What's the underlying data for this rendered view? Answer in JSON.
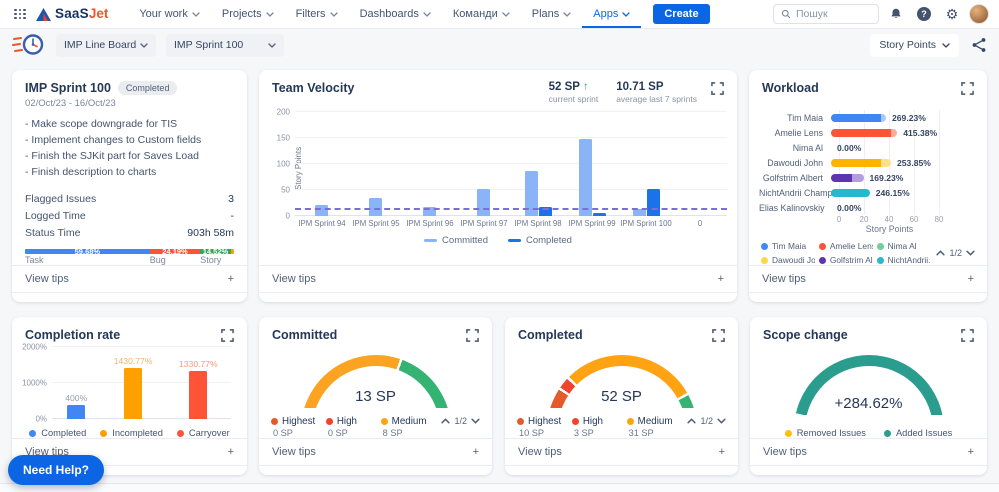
{
  "nav": {
    "logo_saas": "SaaS",
    "logo_jet": "Jet",
    "items": [
      "Your work",
      "Projects",
      "Filters",
      "Dashboards",
      "Команди",
      "Plans",
      "Apps"
    ],
    "active_item": "Apps",
    "create_label": "Create",
    "search_placeholder": "Пошук"
  },
  "toolbar": {
    "board_select": "IMP Line Board",
    "sprint_select": "IMP Sprint 100",
    "metric_select": "Story Points"
  },
  "cards": {
    "sprint": {
      "title": "IMP Sprint 100",
      "badge": "Completed",
      "dates": "02/Oct/23 - 16/Oct/23",
      "description_lines": [
        "- Make scope downgrade for TIS",
        "- Implement changes to Custom fields",
        "- Finish the SJKit part for Saves Load",
        "- Finish description to charts"
      ],
      "stats": [
        {
          "label": "Flagged Issues",
          "value": "3"
        },
        {
          "label": "Logged Time",
          "value": "-"
        },
        {
          "label": "Status Time",
          "value": "903h 58m"
        }
      ],
      "issue_bar": [
        {
          "label": "Task",
          "pct": 59.68,
          "text": "59.68%",
          "color": "#4285f4"
        },
        {
          "label": "Bug",
          "pct": 24.19,
          "text": "24.19%",
          "color": "#ff5337"
        },
        {
          "label": "Story",
          "pct": 14.52,
          "text": "14.52%",
          "color": "#34a853"
        },
        {
          "label": "",
          "pct": 1.61,
          "text": "",
          "color": "#ffa000"
        }
      ],
      "view_tips": "View tips"
    },
    "velocity": {
      "title": "Team Velocity",
      "current": {
        "value": "52 SP",
        "caption": "current sprint",
        "trend": "up"
      },
      "average": {
        "value": "10.71 SP",
        "caption": "average last 7 sprints"
      },
      "view_tips": "View tips",
      "chart_data": {
        "type": "bar",
        "ylabel": "Story Points",
        "ylim": [
          0,
          200
        ],
        "yticks": [
          0,
          50,
          100,
          150,
          200
        ],
        "categories": [
          "IPM Sprint 94",
          "IPM Sprint 95",
          "IPM Sprint 96",
          "IPM Sprint 97",
          "IPM Sprint 98",
          "IPM Sprint 99",
          "IPM Sprint 100",
          "0"
        ],
        "series": [
          {
            "name": "Committed",
            "color": "#8ab4f8",
            "values": [
              21,
              35,
              17,
              52,
              87,
              148,
              13,
              0
            ]
          },
          {
            "name": "Completed",
            "color": "#1a73e8",
            "values": [
              0,
              0,
              0,
              0,
              18,
              5,
              52,
              0
            ]
          }
        ],
        "average_line": {
          "value": 10.71,
          "color": "#7a6fd9",
          "style": "dashed"
        }
      }
    },
    "workload": {
      "title": "Workload",
      "view_tips": "View tips",
      "pagination": "1/2",
      "chart_data": {
        "type": "bar-horizontal",
        "xlabel": "Story Points",
        "xlim": [
          0,
          80
        ],
        "xticks": [
          0,
          20,
          40,
          60,
          80
        ],
        "rows": [
          {
            "name": "Tim Maia",
            "solid": 40,
            "total": 44,
            "label": "269.23%",
            "color": "#4285f4",
            "light": "#a8c7fa"
          },
          {
            "name": "Amelie Lens",
            "solid": 48,
            "total": 53,
            "label": "415.38%",
            "color": "#ff5337",
            "light": "#ffab9e"
          },
          {
            "name": "Nima Al",
            "solid": 0,
            "total": 0,
            "label": "0.00%",
            "color": "#6fcf97",
            "light": "#b7e4c7"
          },
          {
            "name": "Dawoudi John",
            "solid": 40,
            "total": 48,
            "label": "253.85%",
            "color": "#ffb300",
            "light": "#ffe08a"
          },
          {
            "name": "Golfstrim Albert",
            "solid": 17,
            "total": 26,
            "label": "169.23%",
            "color": "#5e35b1",
            "light": "#b39ddb"
          },
          {
            "name": "NichtAndrii Champel",
            "solid": 31,
            "total": 31,
            "label": "246.15%",
            "color": "#26b8ce",
            "light": "#8fdce8"
          },
          {
            "name": "Elias Kalinovskiy",
            "solid": 0,
            "total": 0,
            "label": "0.00%",
            "color": "#9e9e9e",
            "light": "#cccccc"
          }
        ]
      },
      "legend": [
        {
          "label": "Tim Maia",
          "color": "#4285f4"
        },
        {
          "label": "Amelie Lens",
          "color": "#ff5337"
        },
        {
          "label": "Nima Al",
          "color": "#6fcf97"
        },
        {
          "label": "Dawoudi John",
          "color": "#ffd54f"
        },
        {
          "label": "Golfstrim Al...",
          "color": "#5e35b1"
        },
        {
          "label": "NichtAndrii...",
          "color": "#26b8ce"
        }
      ]
    },
    "completion": {
      "title": "Completion rate",
      "view_tips": "View tips",
      "chart_data": {
        "type": "bar",
        "ylim": [
          0,
          2000
        ],
        "yticks": [
          {
            "value": 0,
            "text": "0%"
          },
          {
            "value": 1000,
            "text": "1000%"
          },
          {
            "value": 2000,
            "text": "2000%"
          }
        ],
        "bars": [
          {
            "label": "Completed",
            "value": 400,
            "text": "400%",
            "color": "#4285f4",
            "label_color": "#97a0af"
          },
          {
            "label": "Incompleted",
            "value": 1430.77,
            "text": "1430.77%",
            "color": "#ffa000",
            "label_color": "#f0b266"
          },
          {
            "label": "Carryover",
            "value": 1330.77,
            "text": "1330.77%",
            "color": "#ff5337",
            "label_color": "#f59784"
          }
        ]
      }
    },
    "committed": {
      "title": "Committed",
      "value": "13 SP",
      "view_tips": "View tips",
      "pagination": "1/2",
      "gauge": {
        "segments": [
          {
            "color": "#fca321",
            "fraction": 0.615
          },
          {
            "color": "#34b373",
            "fraction": 0.385
          }
        ]
      },
      "legend": [
        {
          "label": "Highest",
          "value": "0 SP",
          "color": "#e55a2b"
        },
        {
          "label": "High",
          "value": "0 SP",
          "color": "#f4432c"
        },
        {
          "label": "Medium",
          "value": "8 SP",
          "color": "#ffa312"
        }
      ]
    },
    "completed": {
      "title": "Completed",
      "value": "52 SP",
      "view_tips": "View tips",
      "pagination": "1/2",
      "gauge": {
        "segments": [
          {
            "color": "#e55a2b",
            "fraction": 0.192
          },
          {
            "color": "#f4432c",
            "fraction": 0.058
          },
          {
            "color": "#ffa312",
            "fraction": 0.596
          },
          {
            "color": "#34b373",
            "fraction": 0.154
          }
        ]
      },
      "legend": [
        {
          "label": "Highest",
          "value": "10 SP",
          "color": "#e55a2b"
        },
        {
          "label": "High",
          "value": "3 SP",
          "color": "#f4432c"
        },
        {
          "label": "Medium",
          "value": "31 SP",
          "color": "#ffa312"
        }
      ]
    },
    "scope": {
      "title": "Scope change",
      "value": "+284.62%",
      "view_tips": "View tips",
      "gauge": {
        "segments": [
          {
            "color": "#ffc107",
            "fraction": 0.072
          },
          {
            "color": "#2a9d8f",
            "fraction": 0.928
          }
        ]
      },
      "legend": [
        {
          "label": "Removed Issues",
          "color": "#ffc107"
        },
        {
          "label": "Added Issues",
          "color": "#2a9d8f"
        }
      ]
    }
  },
  "need_help_label": "Need Help?"
}
